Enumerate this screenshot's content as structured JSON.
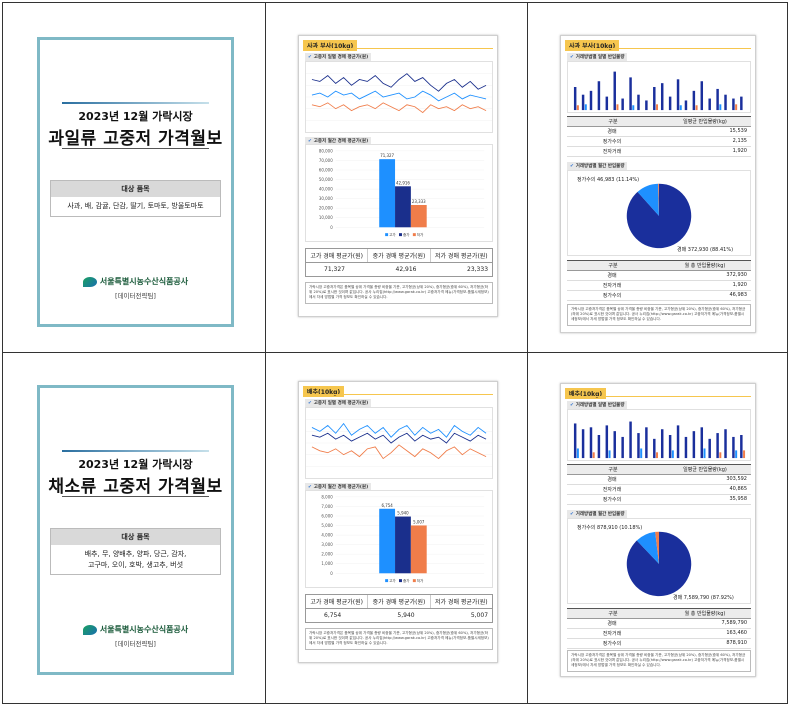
{
  "covers": [
    {
      "title1": "2023년 12월 가락시장",
      "title2": "과일류 고중저 가격월보",
      "target_header": "대상 품목",
      "target_items": "사과, 배, 감귤, 단감, 딸기, 토마토, 방울토마토",
      "org": "서울특별시농수산식품공사",
      "dept": "[데이터전략팀]"
    },
    {
      "title1": "2023년 12월 가락시장",
      "title2": "채소류 고중저 가격월보",
      "target_header": "대상 품목",
      "target_items": "배추, 무, 양배추, 양파, 당근, 감자,\n고구마, 오이, 호박, 생고추, 버섯",
      "org": "서울특별시농수산식품공사",
      "dept": "[데이터전략팀]"
    }
  ],
  "price_pages": [
    {
      "tag": "사과 부사(10kg)",
      "sec1": "고중저 일별 경매 평균가(원)",
      "sec2": "고중저 월간 경매 평균가(원)",
      "table_headers": [
        "고가 경매 평균가(원)",
        "중가 경매 평균가(원)",
        "저가 경매 평균가(원)"
      ],
      "table_values": [
        "71,327",
        "42,916",
        "23,333"
      ],
      "note": "가락시장 고중저가격은 품목별 상위 가격을 총량 비중을 기준, 고가형균(상위 20%), 중가형균(중위 60%), 저가형균(하위 20%)로 표시한 것이며 값입니다. 공사 누리집(http://www.garak.co.kr) 고중저가격 메뉴(가격정보-품별시세정보)에서 자세 방법별 가격 정보도 확인하실 수 있습니다."
    },
    {
      "tag": "배추(10kg)",
      "sec1": "고중저 일별 경매 평균가(원)",
      "sec2": "고중저 월간 경매 평균가(원)",
      "table_headers": [
        "고가 경매 평균가(원)",
        "중가 경매 평균가(원)",
        "저가 경매 평균가(원)"
      ],
      "table_values": [
        "6,754",
        "5,940",
        "5,007"
      ],
      "note": "가락시장 고중저가격은 품목별 상위 가격을 총량 비중을 기준, 고가형균(상위 20%), 중가형균(중위 60%), 저가형균(하위 20%)로 표시한 것이며 값입니다. 공사 누리집(http://www.garak.co.kr) 고중저가격 메뉴(가격정보-품별시세정보)에서 자세 방법별 가격 정보도 확인하실 수 있습니다."
    }
  ],
  "volume_pages": [
    {
      "tag": "사과 부사(10kg)",
      "sec1": "거래방법별 일별 반입물량",
      "sec2": "거래방법별 월간 반입물량",
      "small_headers": [
        "구분",
        "일평균 반입물량(kg)"
      ],
      "small_rows": [
        [
          "경매",
          "15,539"
        ],
        [
          "정가수의",
          "2,135"
        ],
        [
          "전자거래",
          "1,920"
        ]
      ],
      "pie_labels": [
        "정가수의 46,983 (11.14%)",
        "경매 372,930 (88.41%)"
      ],
      "total_headers": [
        "구분",
        "월 총 반입물량(kg)"
      ],
      "total_rows": [
        [
          "경매",
          "372,930"
        ],
        [
          "전자거래",
          "1,920"
        ],
        [
          "정가수의",
          "46,983"
        ]
      ],
      "note": "가락시장 고중저가격은 품목별 상위 가격을 총량 비중을 기준, 고가형균(상위 20%), 중가형균(중위 60%), 저가형균(하위 20%)로 표시한 것이며 값입니다. 공사 누리집(http://www.garak.co.kr) 고중저가격 메뉴(가격정보-품별시세정보)에서 자세 방법별 가격 정보도 확인하실 수 있습니다."
    },
    {
      "tag": "배추(10kg)",
      "sec1": "거래방법별 일별 반입물량",
      "sec2": "거래방법별 월간 반입물량",
      "small_headers": [
        "구분",
        "일평균 반입물량(kg)"
      ],
      "small_rows": [
        [
          "경매",
          "303,592"
        ],
        [
          "전자거래",
          "40,865"
        ],
        [
          "정가수의",
          "35,958"
        ]
      ],
      "pie_labels": [
        "정가수의 878,910 (10.18%)",
        "경매 7,589,790 (87.92%)"
      ],
      "total_headers": [
        "구분",
        "월 총 반입물량(kg)"
      ],
      "total_rows": [
        [
          "경매",
          "7,589,790"
        ],
        [
          "전자거래",
          "163,460"
        ],
        [
          "정가수의",
          "878,910"
        ]
      ],
      "note": "가락시장 고중저가격은 품목별 상위 가격을 총량 비중을 기준, 고가형균(상위 20%), 중가형균(중위 60%), 저가형균(하위 20%)로 표시한 것이며 값입니다. 공사 누리집(http://www.garak.co.kr) 고중저가격 메뉴(가격정보-품별시세정보)에서 자세 방법별 가격 정보도 확인하실 수 있습니다."
    }
  ],
  "chart_data": [
    {
      "type": "bar",
      "categories": [
        "고가",
        "중가",
        "저가"
      ],
      "values": [
        71327,
        42916,
        23333
      ],
      "data_labels": [
        "71,327",
        "42,916",
        "23,333"
      ],
      "yticks": [
        "0",
        "10,000",
        "20,000",
        "30,000",
        "40,000",
        "50,000",
        "60,000",
        "70,000",
        "80,000"
      ],
      "ylim": [
        0,
        80000
      ],
      "colors": [
        "#1e90ff",
        "#1a2f8c",
        "#f07d4a"
      ],
      "legend": [
        "고가",
        "중가",
        "저가"
      ]
    },
    {
      "type": "bar",
      "categories": [
        "고가",
        "중가",
        "저가"
      ],
      "values": [
        6754,
        5940,
        5007
      ],
      "data_labels": [
        "6,754",
        "5,940",
        "5,007"
      ],
      "yticks": [
        "0",
        "1,000",
        "2,000",
        "3,000",
        "4,000",
        "5,000",
        "6,000",
        "7,000",
        "8,000"
      ],
      "ylim": [
        0,
        8000
      ],
      "colors": [
        "#1e90ff",
        "#1a2f8c",
        "#f07d4a"
      ],
      "legend": [
        "고가",
        "중가",
        "저가"
      ]
    },
    {
      "type": "pie",
      "labels": [
        "경매",
        "정가수의",
        "전자거래"
      ],
      "values": [
        88.41,
        11.14,
        0.45
      ],
      "colors": [
        "#1a2f9c",
        "#1e90ff",
        "#f07d4a"
      ]
    },
    {
      "type": "pie",
      "labels": [
        "경매",
        "정가수의",
        "전자거래"
      ],
      "values": [
        87.92,
        10.18,
        1.9
      ],
      "colors": [
        "#1a2f9c",
        "#1e90ff",
        "#f07d4a"
      ]
    }
  ]
}
